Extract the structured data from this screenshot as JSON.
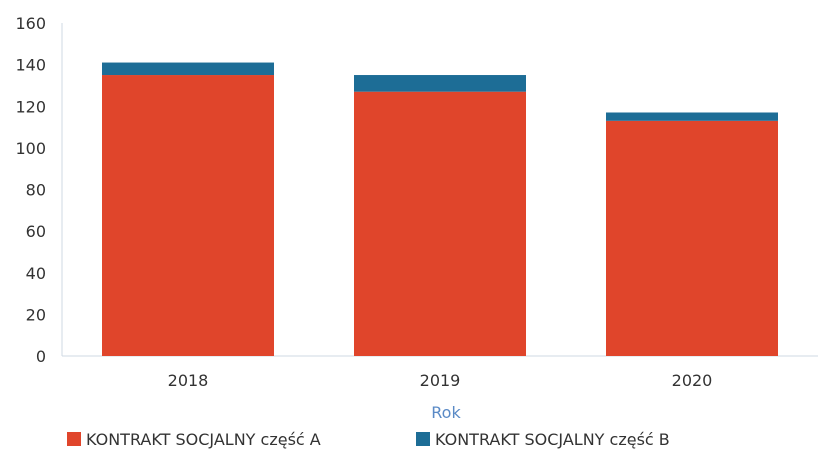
{
  "chart_data": {
    "type": "bar",
    "stacked": true,
    "categories": [
      "2018",
      "2019",
      "2020"
    ],
    "series": [
      {
        "name": "KONTRAKT SOCJALNY część A",
        "values": [
          135,
          127,
          113
        ],
        "color": "#e0452b"
      },
      {
        "name": "KONTRAKT SOCJALNY część B",
        "values": [
          6,
          8,
          4
        ],
        "color": "#1d6d96"
      }
    ],
    "xlabel": "Rok",
    "ylabel": "",
    "ylim": [
      0,
      160
    ],
    "yticks": [
      0,
      20,
      40,
      60,
      80,
      100,
      120,
      140,
      160
    ],
    "grid": false,
    "legend_position": "bottom",
    "colors": {
      "axis_title": "#5a8ac6",
      "axis_line": "#cfd8e3"
    }
  }
}
